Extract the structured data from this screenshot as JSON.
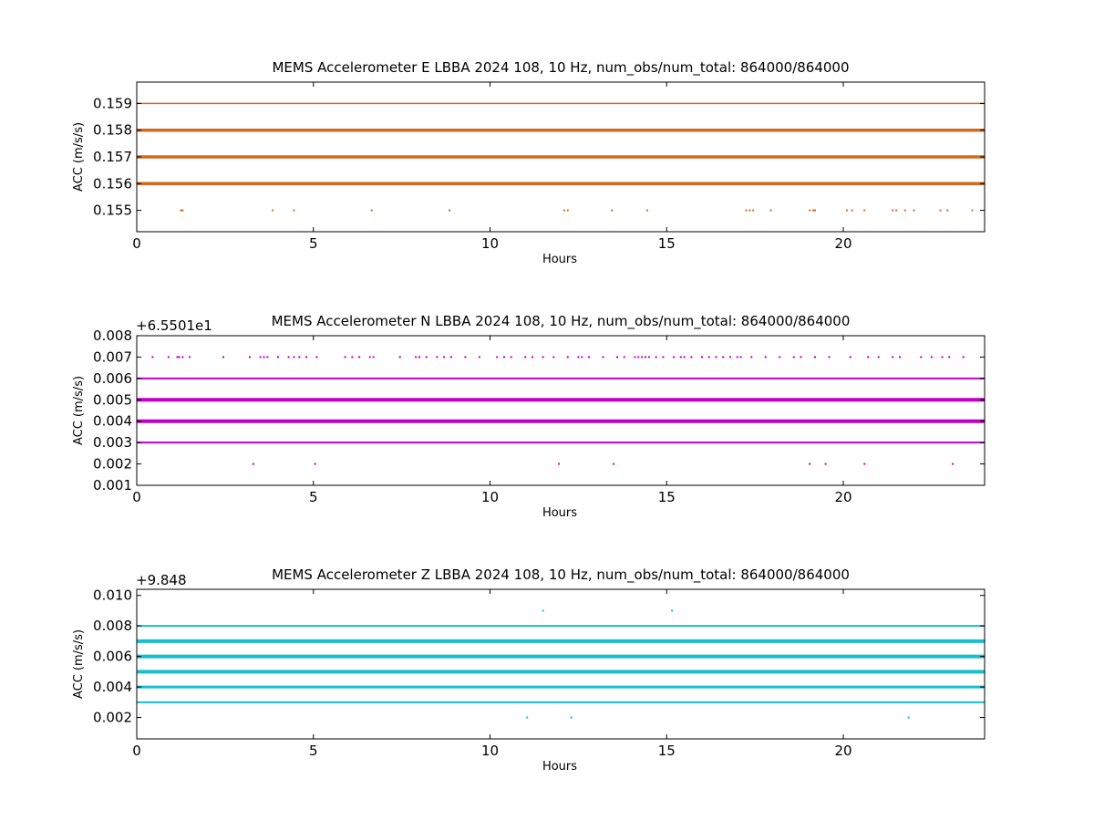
{
  "chart_data": [
    {
      "type": "scatter",
      "title": "MEMS Accelerometer E LBBA 2024 108, 10 Hz, num_obs/num_total: 864000/864000",
      "xlabel": "Hours",
      "ylabel": "ACC (m/s/s)",
      "xlim": [
        0,
        24
      ],
      "ylim": [
        0.1542,
        0.1598
      ],
      "xticks": [
        0,
        5,
        10,
        15,
        20
      ],
      "yticks": [
        0.155,
        0.156,
        0.157,
        0.158,
        0.159
      ],
      "ytick_labels": [
        "0.155",
        "0.156",
        "0.157",
        "0.158",
        "0.159"
      ],
      "y_offset_text": "",
      "color": "#d2691e",
      "grid": false,
      "series": [
        {
          "levels": [
            0.159,
            0.158,
            0.157,
            0.156
          ],
          "level_weights": [
            1.5,
            3.5,
            3.5,
            3.5
          ],
          "sparse": {
            "y": 0.155,
            "x": [
              1.25,
              1.3,
              3.85,
              4.45,
              6.65,
              8.85,
              12.1,
              12.2,
              13.45,
              14.45,
              17.25,
              17.35,
              17.45,
              17.95,
              19.05,
              19.15,
              19.2,
              20.1,
              20.25,
              20.6,
              21.4,
              21.5,
              21.75,
              22.0,
              22.75,
              22.95,
              23.65
            ]
          }
        }
      ]
    },
    {
      "type": "scatter",
      "title": "MEMS Accelerometer N LBBA 2024 108, 10 Hz, num_obs/num_total: 864000/864000",
      "xlabel": "Hours",
      "ylabel": "ACC (m/s/s)",
      "xlim": [
        0,
        24
      ],
      "ylim": [
        0.001,
        0.008
      ],
      "xticks": [
        0,
        5,
        10,
        15,
        20
      ],
      "yticks": [
        0.001,
        0.002,
        0.003,
        0.004,
        0.005,
        0.006,
        0.007,
        0.008
      ],
      "ytick_labels": [
        "0.001",
        "0.002",
        "0.003",
        "0.004",
        "0.005",
        "0.006",
        "0.007",
        "0.008"
      ],
      "y_offset_text": "+6.5501e1",
      "color": "#bf00bf",
      "grid": false,
      "series": [
        {
          "levels": [
            0.006,
            0.005,
            0.004,
            0.003
          ],
          "level_weights": [
            2,
            4,
            4,
            2
          ],
          "sparse_upper": {
            "y": 0.007,
            "x": [
              0.45,
              0.9,
              1.15,
              1.2,
              1.3,
              1.5,
              2.45,
              3.2,
              3.5,
              3.6,
              3.7,
              4.0,
              4.3,
              4.45,
              4.6,
              4.8,
              5.1,
              5.9,
              6.1,
              6.3,
              6.6,
              6.7,
              7.45,
              7.9,
              8.0,
              8.2,
              8.5,
              8.7,
              8.9,
              9.3,
              9.7,
              10.2,
              10.4,
              10.6,
              11.0,
              11.2,
              11.5,
              11.8,
              12.2,
              12.5,
              12.6,
              12.8,
              13.2,
              13.6,
              13.8,
              14.1,
              14.2,
              14.3,
              14.4,
              14.5,
              14.7,
              14.9,
              15.2,
              15.4,
              15.5,
              15.7,
              16.0,
              16.2,
              16.4,
              16.6,
              16.8,
              17.0,
              17.1,
              17.4,
              17.8,
              18.2,
              18.6,
              18.8,
              19.2,
              19.6,
              20.2,
              20.7,
              21.0,
              21.4,
              21.6,
              22.2,
              22.5,
              22.8,
              23.0,
              23.4
            ]
          },
          "sparse_lower": {
            "y": 0.002,
            "x": [
              3.3,
              5.05,
              11.95,
              13.5,
              19.05,
              19.5,
              20.6,
              23.1
            ]
          }
        }
      ]
    },
    {
      "type": "scatter",
      "title": "MEMS Accelerometer Z LBBA 2024 108, 10 Hz, num_obs/num_total: 864000/864000",
      "xlabel": "Hours",
      "ylabel": "ACC (m/s/s)",
      "xlim": [
        0,
        24
      ],
      "ylim": [
        0.0006,
        0.0104
      ],
      "xticks": [
        0,
        5,
        10,
        15,
        20
      ],
      "yticks": [
        0.002,
        0.004,
        0.006,
        0.008,
        0.01
      ],
      "ytick_labels": [
        "0.002",
        "0.004",
        "0.006",
        "0.008",
        "0.010"
      ],
      "y_offset_text": "+9.848",
      "color": "#17becf",
      "grid": false,
      "series": [
        {
          "levels": [
            0.008,
            0.007,
            0.006,
            0.005,
            0.004,
            0.003
          ],
          "level_weights": [
            2,
            4,
            4,
            4,
            3,
            2
          ],
          "sparse_upper": {
            "y": 0.009,
            "x": [
              11.5,
              15.15
            ]
          },
          "sparse_lower": {
            "y": 0.002,
            "x": [
              11.05,
              12.3,
              21.85
            ]
          }
        }
      ]
    }
  ]
}
